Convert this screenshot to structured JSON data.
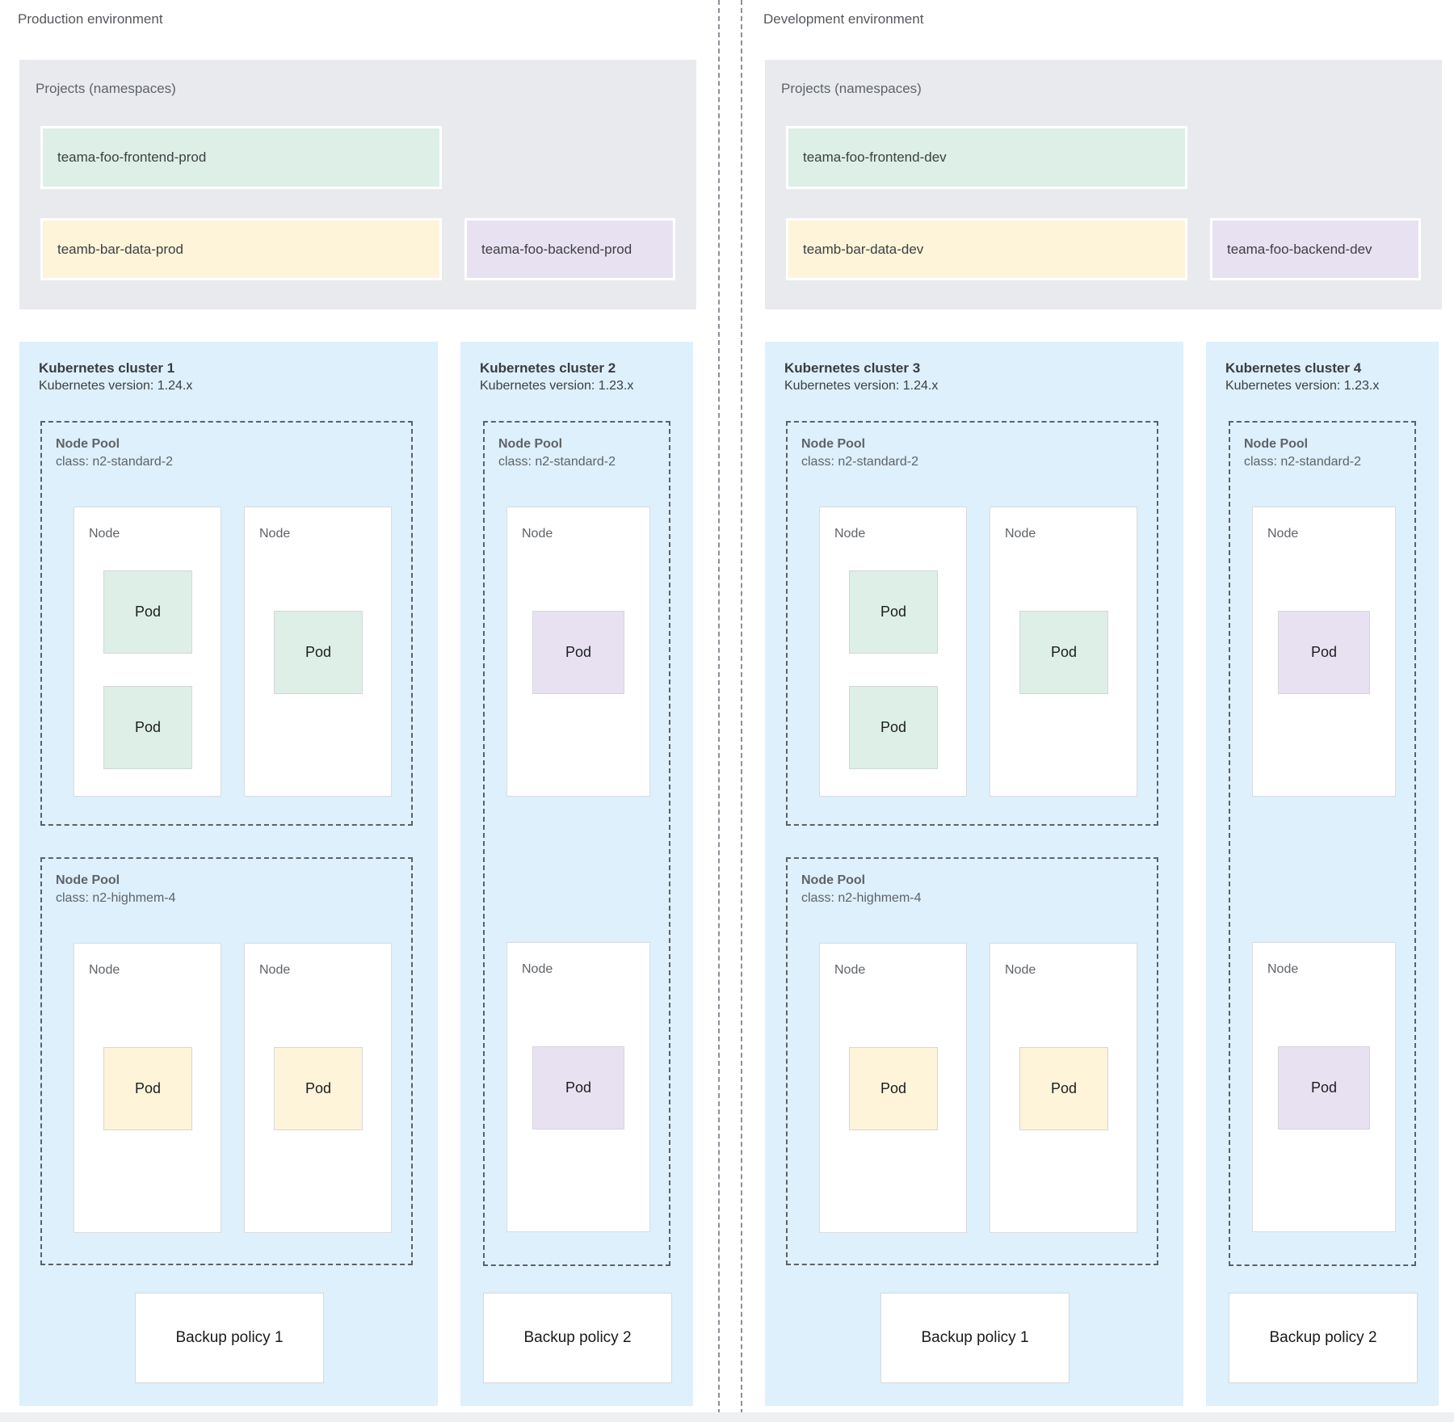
{
  "colors": {
    "cluster_bg": "#ddf0fb",
    "projects_bg": "#e8eaed",
    "green": "#ddefe6",
    "yellow": "#fdf4d9",
    "purple": "#e8e1f1"
  },
  "environments": [
    {
      "label": "Production environment",
      "projects": {
        "title": "Projects (namespaces)",
        "namespaces": [
          {
            "name": "teama-foo-frontend-prod",
            "color": "green"
          },
          {
            "name": "teamb-bar-data-prod",
            "color": "yellow"
          },
          {
            "name": "teama-foo-backend-prod",
            "color": "purple"
          }
        ]
      },
      "clusters": [
        {
          "title": "Kubernetes cluster 1",
          "version": "Kubernetes version: 1.24.x",
          "backup_policy": "Backup policy 1",
          "node_pools": [
            {
              "title": "Node Pool",
              "machine_class": "class: n2-standard-2",
              "nodes": [
                {
                  "label": "Node",
                  "pods": [
                    {
                      "label": "Pod",
                      "color": "green"
                    },
                    {
                      "label": "Pod",
                      "color": "green"
                    }
                  ]
                },
                {
                  "label": "Node",
                  "pods": [
                    {
                      "label": "Pod",
                      "color": "green"
                    }
                  ]
                }
              ]
            },
            {
              "title": "Node Pool",
              "machine_class": "class: n2-highmem-4",
              "nodes": [
                {
                  "label": "Node",
                  "pods": [
                    {
                      "label": "Pod",
                      "color": "yellow"
                    }
                  ]
                },
                {
                  "label": "Node",
                  "pods": [
                    {
                      "label": "Pod",
                      "color": "yellow"
                    }
                  ]
                }
              ]
            }
          ]
        },
        {
          "title": "Kubernetes cluster 2",
          "version": "Kubernetes version: 1.23.x",
          "backup_policy": "Backup policy 2",
          "node_pools": [
            {
              "title": "Node Pool",
              "machine_class": "class: n2-standard-2",
              "nodes": [
                {
                  "label": "Node",
                  "pods": [
                    {
                      "label": "Pod",
                      "color": "purple"
                    }
                  ]
                },
                {
                  "label": "Node",
                  "pods": [
                    {
                      "label": "Pod",
                      "color": "purple"
                    }
                  ]
                }
              ]
            }
          ]
        }
      ]
    },
    {
      "label": "Development environment",
      "projects": {
        "title": "Projects (namespaces)",
        "namespaces": [
          {
            "name": "teama-foo-frontend-dev",
            "color": "green"
          },
          {
            "name": "teamb-bar-data-dev",
            "color": "yellow"
          },
          {
            "name": "teama-foo-backend-dev",
            "color": "purple"
          }
        ]
      },
      "clusters": [
        {
          "title": "Kubernetes cluster 3",
          "version": "Kubernetes version: 1.24.x",
          "backup_policy": "Backup policy 1",
          "node_pools": [
            {
              "title": "Node Pool",
              "machine_class": "class: n2-standard-2",
              "nodes": [
                {
                  "label": "Node",
                  "pods": [
                    {
                      "label": "Pod",
                      "color": "green"
                    },
                    {
                      "label": "Pod",
                      "color": "green"
                    }
                  ]
                },
                {
                  "label": "Node",
                  "pods": [
                    {
                      "label": "Pod",
                      "color": "green"
                    }
                  ]
                }
              ]
            },
            {
              "title": "Node Pool",
              "machine_class": "class: n2-highmem-4",
              "nodes": [
                {
                  "label": "Node",
                  "pods": [
                    {
                      "label": "Pod",
                      "color": "yellow"
                    }
                  ]
                },
                {
                  "label": "Node",
                  "pods": [
                    {
                      "label": "Pod",
                      "color": "yellow"
                    }
                  ]
                }
              ]
            }
          ]
        },
        {
          "title": "Kubernetes cluster 4",
          "version": "Kubernetes version: 1.23.x",
          "backup_policy": "Backup policy 2",
          "node_pools": [
            {
              "title": "Node Pool",
              "machine_class": "class: n2-standard-2",
              "nodes": [
                {
                  "label": "Node",
                  "pods": [
                    {
                      "label": "Pod",
                      "color": "purple"
                    }
                  ]
                },
                {
                  "label": "Node",
                  "pods": [
                    {
                      "label": "Pod",
                      "color": "purple"
                    }
                  ]
                }
              ]
            }
          ]
        }
      ]
    }
  ]
}
